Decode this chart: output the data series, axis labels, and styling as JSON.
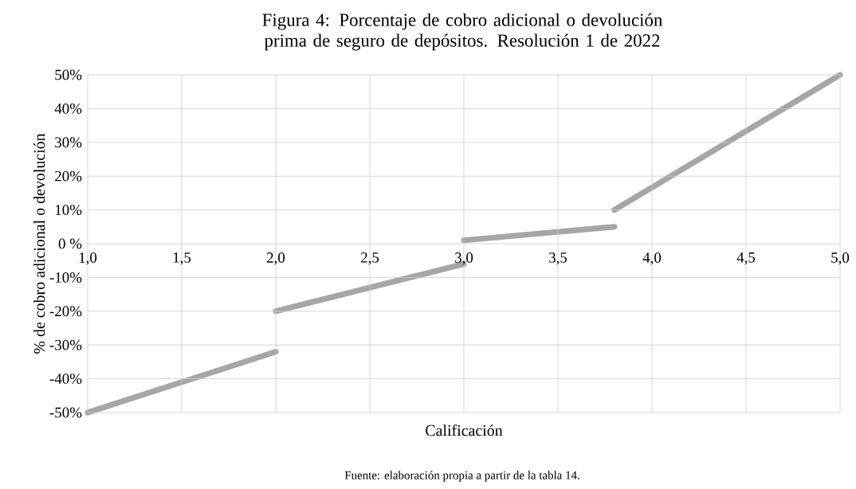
{
  "chart_data": {
    "type": "line",
    "title": "Figura 4: Porcentaje de cobro adicional o devolución prima de seguro de depósitos. Resolución 1 de 2022",
    "xlabel": "Calificación",
    "ylabel": "% de cobro adicional o devolución",
    "annotations": [
      "Fuente: elaboración propia a partir de la tabla 14."
    ],
    "series": [
      {
        "color": "#a6a6a6",
        "x": [
          1.0,
          2.0
        ],
        "values": [
          -50,
          -32
        ]
      },
      {
        "color": "#a6a6a6",
        "x": [
          2.0,
          3.0
        ],
        "values": [
          -20,
          -6
        ]
      },
      {
        "color": "#a6a6a6",
        "x": [
          3.0,
          3.8
        ],
        "values": [
          1,
          5
        ]
      },
      {
        "color": "#a6a6a6",
        "x": [
          3.8,
          5.0
        ],
        "values": [
          10,
          50
        ]
      }
    ],
    "xlim": [
      1.0,
      5.0
    ],
    "ylim": [
      -50,
      50
    ],
    "xticks": [
      {
        "value": 1.0,
        "label": "1,0"
      },
      {
        "value": 1.5,
        "label": "1,5"
      },
      {
        "value": 2.0,
        "label": "2,0"
      },
      {
        "value": 2.5,
        "label": "2,5"
      },
      {
        "value": 3.0,
        "label": "3,0"
      },
      {
        "value": 3.5,
        "label": "3,5"
      },
      {
        "value": 4.0,
        "label": "4,0"
      },
      {
        "value": 4.5,
        "label": "4,5"
      },
      {
        "value": 5.0,
        "label": "5,0"
      }
    ],
    "yticks": [
      {
        "value": -50,
        "label": "-50%"
      },
      {
        "value": -40,
        "label": "-40%"
      },
      {
        "value": -30,
        "label": "-30%"
      },
      {
        "value": -20,
        "label": "-20%"
      },
      {
        "value": -10,
        "label": "-10%"
      },
      {
        "value": 0,
        "label": "0 %"
      },
      {
        "value": 10,
        "label": "10%"
      },
      {
        "value": 20,
        "label": "20%"
      },
      {
        "value": 30,
        "label": "30%"
      },
      {
        "value": 40,
        "label": "40%"
      },
      {
        "value": 50,
        "label": "50%"
      }
    ],
    "grid": true,
    "marker": "none",
    "line_style": "solid"
  }
}
